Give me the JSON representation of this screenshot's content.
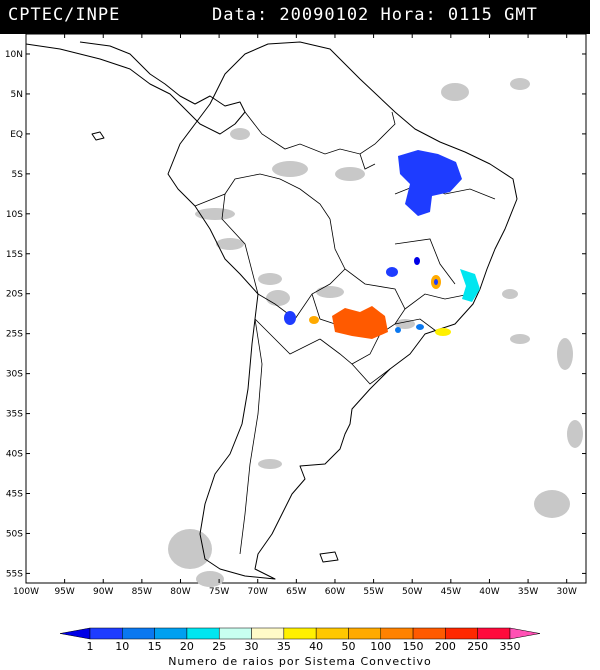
{
  "header": {
    "source": "CPTEC/INPE",
    "datetime": "Data: 20090102 Hora: 0115 GMT"
  },
  "map": {
    "lat_labels": [
      "10N",
      "5N",
      "EQ",
      "5S",
      "10S",
      "15S",
      "20S",
      "25S",
      "30S",
      "35S",
      "40S",
      "45S",
      "50S",
      "55S"
    ],
    "lon_labels": [
      "100W",
      "95W",
      "90W",
      "85W",
      "80W",
      "75W",
      "70W",
      "65W",
      "60W",
      "55W",
      "50W",
      "45W",
      "40W",
      "35W",
      "30W"
    ],
    "lat_values": [
      10,
      5,
      0,
      -5,
      -10,
      -15,
      -20,
      -25,
      -30,
      -35,
      -40,
      -45,
      -50,
      -55
    ],
    "lon_values": [
      -100,
      -95,
      -90,
      -85,
      -80,
      -75,
      -70,
      -65,
      -60,
      -55,
      -50,
      -45,
      -40,
      -35,
      -30
    ],
    "colors": {
      "cloud": "#c8c8c8",
      "border": "#000000"
    }
  },
  "legend": {
    "labels": [
      "1",
      "10",
      "15",
      "20",
      "25",
      "30",
      "35",
      "40",
      "50",
      "100",
      "150",
      "200",
      "250",
      "350"
    ],
    "colors": [
      "#0000e6",
      "#1e3cff",
      "#0a78f0",
      "#00a0f0",
      "#00e6f0",
      "#c8fff0",
      "#fffac8",
      "#fff000",
      "#ffc800",
      "#ffaa00",
      "#ff8200",
      "#ff5a00",
      "#ff2800",
      "#ff0a3c",
      "#ff50b4"
    ],
    "caption": "Numero de raios por Sistema Convectivo"
  }
}
